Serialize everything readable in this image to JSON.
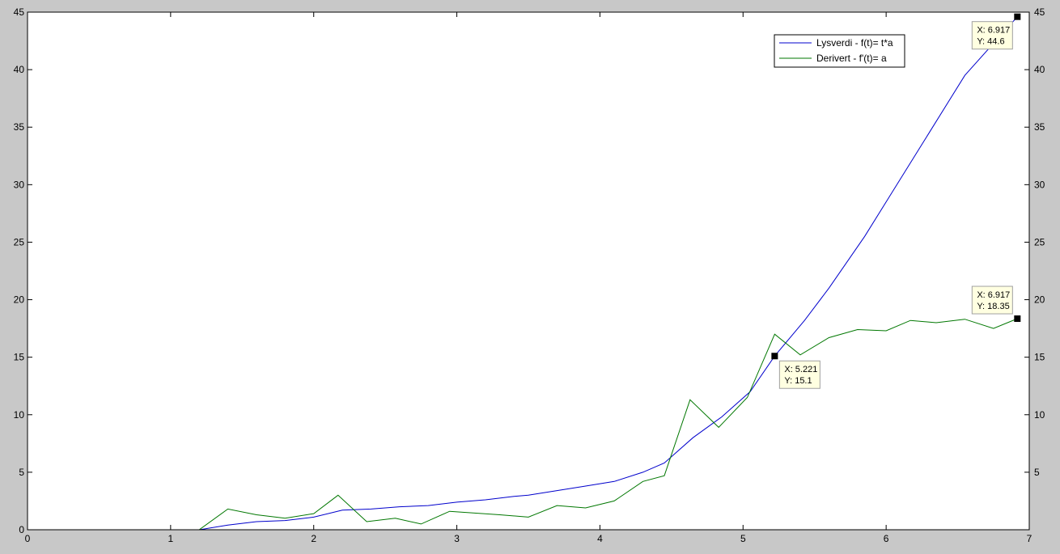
{
  "chart_data": {
    "type": "line",
    "title": "",
    "xlabel": "",
    "ylabel": "",
    "xlim": [
      0,
      7
    ],
    "ylim": [
      0,
      45
    ],
    "x_ticks": [
      0,
      1,
      2,
      3,
      4,
      5,
      6,
      7
    ],
    "y_ticks_left": [
      0,
      5,
      10,
      15,
      20,
      25,
      30,
      35,
      40,
      45
    ],
    "y_ticks_right": [
      5,
      10,
      15,
      20,
      25,
      30,
      35,
      40,
      45
    ],
    "x_tick_labels": [
      "0",
      "1",
      "2",
      "3",
      "4",
      "5",
      "6",
      "7"
    ],
    "y_tick_labels_left": [
      "0",
      "5",
      "10",
      "15",
      "20",
      "25",
      "30",
      "35",
      "40",
      "45"
    ],
    "y_tick_labels_right": [
      "5",
      "10",
      "15",
      "20",
      "25",
      "30",
      "35",
      "40",
      "45"
    ],
    "grid": false,
    "legend_position": "top-right",
    "series": [
      {
        "name": "Lysverdi - f(t)= t*a",
        "color": "#0000cc",
        "points": [
          [
            0,
            0
          ],
          [
            1.2,
            0
          ],
          [
            1.4,
            0.4
          ],
          [
            1.6,
            0.7
          ],
          [
            1.8,
            0.8
          ],
          [
            2.0,
            1.1
          ],
          [
            2.2,
            1.7
          ],
          [
            2.4,
            1.8
          ],
          [
            2.6,
            2.0
          ],
          [
            2.8,
            2.1
          ],
          [
            3.0,
            2.4
          ],
          [
            3.2,
            2.6
          ],
          [
            3.4,
            2.9
          ],
          [
            3.5,
            3.0
          ],
          [
            3.7,
            3.4
          ],
          [
            3.9,
            3.8
          ],
          [
            4.1,
            4.2
          ],
          [
            4.3,
            5.0
          ],
          [
            4.45,
            5.8
          ],
          [
            4.65,
            8.0
          ],
          [
            4.85,
            9.8
          ],
          [
            5.05,
            12.0
          ],
          [
            5.221,
            15.1
          ],
          [
            5.43,
            18.2
          ],
          [
            5.6,
            21.0
          ],
          [
            5.85,
            25.5
          ],
          [
            6.05,
            29.5
          ],
          [
            6.3,
            34.5
          ],
          [
            6.55,
            39.5
          ],
          [
            6.917,
            44.6
          ]
        ]
      },
      {
        "name": "Derivert -  f'(t)= a",
        "color": "#007700",
        "points": [
          [
            0,
            0
          ],
          [
            1.2,
            0
          ],
          [
            1.4,
            1.8
          ],
          [
            1.6,
            1.3
          ],
          [
            1.8,
            1.0
          ],
          [
            2.0,
            1.4
          ],
          [
            2.17,
            3.0
          ],
          [
            2.37,
            0.7
          ],
          [
            2.57,
            1.0
          ],
          [
            2.75,
            0.5
          ],
          [
            2.95,
            1.6
          ],
          [
            3.3,
            1.3
          ],
          [
            3.5,
            1.1
          ],
          [
            3.7,
            2.1
          ],
          [
            3.9,
            1.9
          ],
          [
            4.1,
            2.5
          ],
          [
            4.3,
            4.2
          ],
          [
            4.45,
            4.7
          ],
          [
            4.63,
            11.3
          ],
          [
            4.83,
            8.9
          ],
          [
            5.03,
            11.5
          ],
          [
            5.221,
            17.0
          ],
          [
            5.4,
            15.2
          ],
          [
            5.6,
            16.7
          ],
          [
            5.8,
            17.4
          ],
          [
            6.0,
            17.3
          ],
          [
            6.17,
            18.2
          ],
          [
            6.35,
            18.0
          ],
          [
            6.55,
            18.3
          ],
          [
            6.75,
            17.5
          ],
          [
            6.917,
            18.35
          ]
        ]
      }
    ],
    "data_tips": [
      {
        "x_value": 6.917,
        "y_value": 44.6,
        "x_text": "X: 6.917",
        "y_text": "Y: 44.6",
        "placement": "left-below"
      },
      {
        "x_value": 6.917,
        "y_value": 18.35,
        "x_text": "X: 6.917",
        "y_text": "Y: 18.35",
        "placement": "left-above"
      },
      {
        "x_value": 5.221,
        "y_value": 15.1,
        "x_text": "X: 5.221",
        "y_text": "Y: 15.1",
        "placement": "right-below"
      }
    ]
  }
}
